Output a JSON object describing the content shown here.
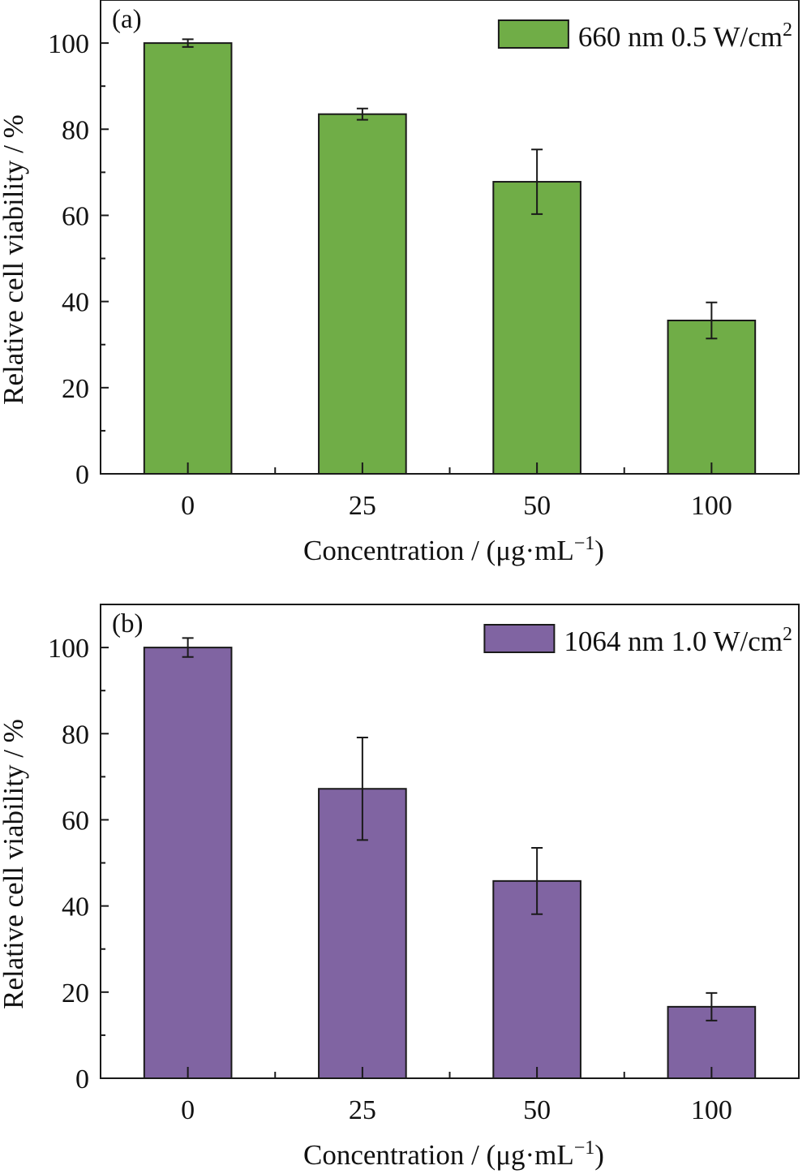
{
  "chart_data": [
    {
      "type": "bar",
      "panel_label": "(a)",
      "categories": [
        "0",
        "25",
        "50",
        "100"
      ],
      "values": [
        100,
        83.5,
        67.8,
        35.6
      ],
      "errors": [
        0.9,
        1.3,
        7.5,
        4.2
      ],
      "legend": "660 nm 0.5 W/cm",
      "legend_sup": "2",
      "color": "#70ad47",
      "xlabel": "Concentration / (μg·mL",
      "xlabel_sup": "−1",
      "xlabel_end": ")",
      "ylabel": "Relative cell viability / %",
      "ylim": [
        0,
        110
      ],
      "yticks": [
        "0",
        "20",
        "40",
        "60",
        "80",
        "100"
      ],
      "ytick_values": [
        0,
        20,
        40,
        60,
        80,
        100
      ],
      "legend_position": "top-right",
      "grid": false
    },
    {
      "type": "bar",
      "panel_label": "(b)",
      "categories": [
        "0",
        "25",
        "50",
        "100"
      ],
      "values": [
        100,
        67.2,
        45.8,
        16.6
      ],
      "errors": [
        2.2,
        11.9,
        7.7,
        3.2
      ],
      "legend": "1064 nm 1.0 W/cm",
      "legend_sup": "2",
      "color": "#8064a2",
      "xlabel": "Concentration / (μg·mL",
      "xlabel_sup": "−1",
      "xlabel_end": ")",
      "ylabel": "Relative cell viability / %",
      "ylim": [
        0,
        110
      ],
      "yticks": [
        "0",
        "20",
        "40",
        "60",
        "80",
        "100"
      ],
      "ytick_values": [
        0,
        20,
        40,
        60,
        80,
        100
      ],
      "legend_position": "top-right",
      "grid": false
    }
  ]
}
